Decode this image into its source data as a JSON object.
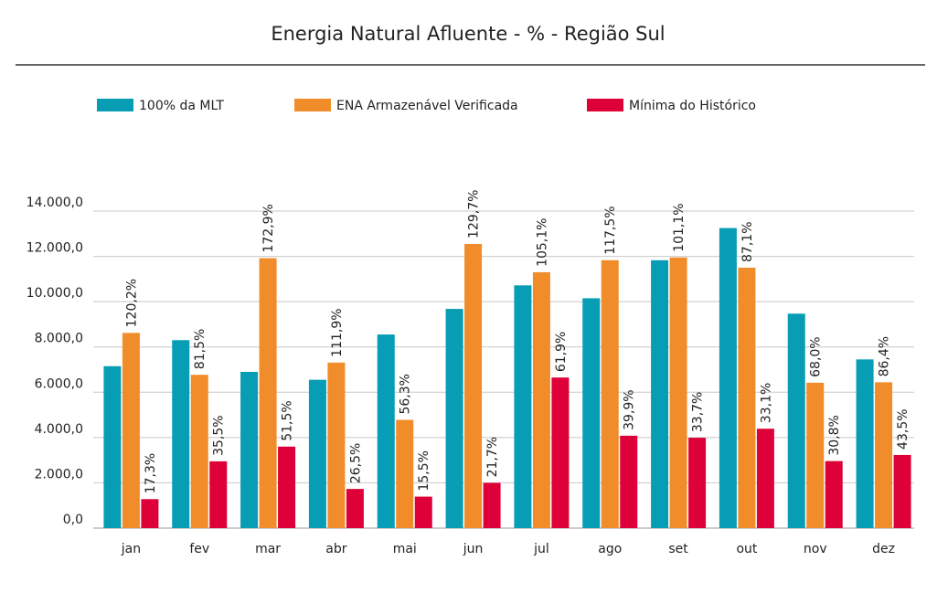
{
  "chart_data": {
    "type": "bar",
    "title": "Energia Natural Afluente - % - Região Sul",
    "xlabel": "",
    "ylabel": "",
    "ylim": [
      0,
      14000
    ],
    "yticks": [
      "0,0",
      "2.000,0",
      "4.000,0",
      "6.000,0",
      "8.000,0",
      "10.000,0",
      "12.000,0",
      "14.000,0"
    ],
    "ytick_values": [
      0,
      2000,
      4000,
      6000,
      8000,
      10000,
      12000,
      14000
    ],
    "grid": true,
    "legend_position": "top",
    "categories": [
      "jan",
      "fev",
      "mar",
      "abr",
      "mai",
      "jun",
      "jul",
      "ago",
      "set",
      "out",
      "nov",
      "dez"
    ],
    "series": [
      {
        "name": "100% da MLT",
        "color": "#069db5",
        "values": [
          7150,
          8300,
          6900,
          6550,
          8550,
          9680,
          10720,
          10150,
          11830,
          13250,
          9470,
          7450
        ]
      },
      {
        "name": "ENA Armazenável Verificada",
        "color": "#f08c2a",
        "values": [
          8620,
          6770,
          11920,
          7310,
          4780,
          12550,
          11300,
          11830,
          11950,
          11500,
          6420,
          6440
        ],
        "data_labels": [
          "120,2%",
          "81,5%",
          "172,9%",
          "111,9%",
          "56,3%",
          "129,7%",
          "105,1%",
          "117,5%",
          "101,1%",
          "87,1%",
          "68,0%",
          "86,4%"
        ]
      },
      {
        "name": "Mínima do Histórico",
        "color": "#de0038",
        "values": [
          1280,
          2950,
          3600,
          1730,
          1390,
          2000,
          6650,
          4080,
          3990,
          4390,
          2960,
          3230
        ],
        "data_labels": [
          "17,3%",
          "35,5%",
          "51,5%",
          "26,5%",
          "15,5%",
          "21,7%",
          "61,9%",
          "39,9%",
          "33,7%",
          "33,1%",
          "30,8%",
          "43,5%"
        ]
      }
    ]
  }
}
